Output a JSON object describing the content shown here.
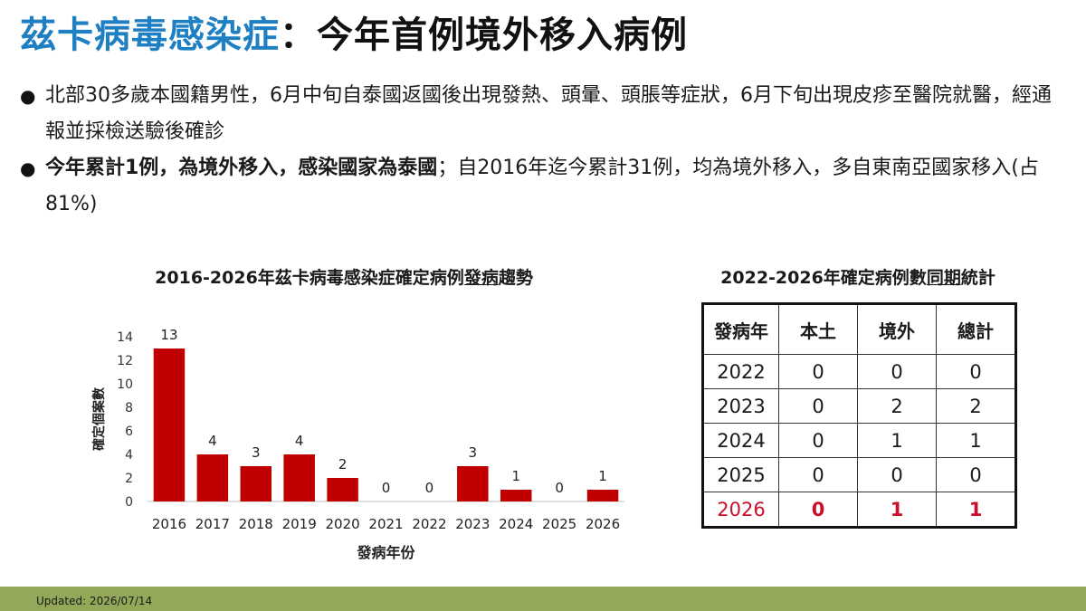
{
  "title": {
    "highlight": "茲卡病毒感染症",
    "rest": "：今年首例境外移入病例"
  },
  "bullets": {
    "b1": "北部30多歲本國籍男性，6月中旬自泰國返國後出現發熱、頭暈、頭脹等症狀，6月下旬出現皮疹至醫院就醫，經通報並採檢送驗後確診",
    "b2_bold": "今年累計1例，為境外移入，感染國家為泰國",
    "b2_rest": "；自2016年迄今累計31例，均為境外移入，多自東南亞國家移入(占81%)"
  },
  "chart_data": {
    "type": "bar",
    "title": "2016-2026年茲卡病毒感染症確定病例發病趨勢",
    "title_parts": {
      "pre": "2016-2026年茲卡病毒感染症確定病例",
      "underlined": "發病",
      "post": "趨勢"
    },
    "xlabel": "發病年份",
    "ylabel": "確定個案數",
    "categories": [
      "2016",
      "2017",
      "2018",
      "2019",
      "2020",
      "2021",
      "2022",
      "2023",
      "2024",
      "2025",
      "2026"
    ],
    "values": [
      13,
      4,
      3,
      4,
      2,
      0,
      0,
      3,
      1,
      0,
      1
    ],
    "ylim": [
      0,
      14
    ],
    "yticks": [
      0,
      2,
      4,
      6,
      8,
      10,
      12,
      14
    ],
    "bar_color": "#c00000",
    "grid": false,
    "data_labels": true
  },
  "table": {
    "title_parts": {
      "pre": "2022-2026年確定病例數",
      "underlined": "同期",
      "post": "統計"
    },
    "headers": [
      "發病年",
      "本土",
      "境外",
      "總計"
    ],
    "rows": [
      [
        "2022",
        "0",
        "0",
        "0"
      ],
      [
        "2023",
        "0",
        "2",
        "2"
      ],
      [
        "2024",
        "0",
        "1",
        "1"
      ],
      [
        "2025",
        "0",
        "0",
        "0"
      ],
      [
        "2026",
        "0",
        "1",
        "1"
      ]
    ],
    "highlight_color": "#c8102e"
  },
  "footer": {
    "updated": "Updated: 2026/07/14",
    "color": "#94a85a"
  },
  "colors": {
    "title_blue": "#1f7fc3"
  }
}
